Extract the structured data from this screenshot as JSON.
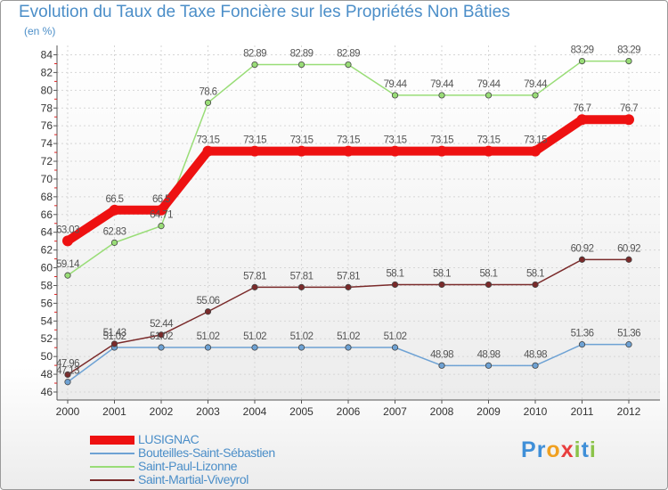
{
  "chart_data": {
    "type": "line",
    "title": "Evolution du Taux de Taxe Foncière sur les Propriétés Non Bâties",
    "ylabel": "(en %)",
    "xlabel": "",
    "ylim": [
      46,
      84
    ],
    "yticks": [
      46,
      48,
      50,
      52,
      54,
      56,
      58,
      60,
      62,
      64,
      66,
      68,
      70,
      72,
      74,
      76,
      78,
      80,
      82,
      84
    ],
    "categories": [
      "2000",
      "2001",
      "2002",
      "2003",
      "2004",
      "2005",
      "2006",
      "2007",
      "2008",
      "2009",
      "2010",
      "2011",
      "2012"
    ],
    "series": [
      {
        "name": "LUSIGNAC",
        "color": "#ee1111",
        "values": [
          63.03,
          66.5,
          66.5,
          73.15,
          73.15,
          73.15,
          73.15,
          73.15,
          73.15,
          73.15,
          73.15,
          76.7,
          76.7
        ],
        "labels": [
          "63.03",
          "66.5",
          "66.5",
          "73.15",
          "73.15",
          "73.15",
          "73.15",
          "73.15",
          "73.15",
          "73.15",
          "73.15",
          "76.7",
          "76.7"
        ]
      },
      {
        "name": "Bouteilles-Saint-Sébastien",
        "color": "#6ea2d4",
        "values": [
          47.13,
          51.02,
          51.02,
          51.02,
          51.02,
          51.02,
          51.02,
          51.02,
          48.98,
          48.98,
          48.98,
          51.36,
          51.36
        ],
        "labels": [
          "47.13",
          "51.02",
          "51.02",
          "51.02",
          "51.02",
          "51.02",
          "51.02",
          "51.02",
          "48.98",
          "48.98",
          "48.98",
          "51.36",
          "51.36"
        ]
      },
      {
        "name": "Saint-Paul-Lizonne",
        "color": "#99dd77",
        "values": [
          59.14,
          62.83,
          64.71,
          78.6,
          82.89,
          82.89,
          82.89,
          79.44,
          79.44,
          79.44,
          79.44,
          83.29,
          83.29
        ],
        "labels": [
          "59.14",
          "62.83",
          "64.71",
          "78.6",
          "82.89",
          "82.89",
          "82.89",
          "79.44",
          "79.44",
          "79.44",
          "79.44",
          "83.29",
          "83.29"
        ]
      },
      {
        "name": "Saint-Martial-Viveyrol",
        "color": "#7a2a2a",
        "values": [
          47.96,
          51.43,
          52.44,
          55.06,
          57.81,
          57.81,
          57.81,
          58.1,
          58.1,
          58.1,
          58.1,
          60.92,
          60.92
        ],
        "labels": [
          "47.96",
          "51.43",
          "52.44",
          "55.06",
          "57.81",
          "57.81",
          "57.81",
          "58.1",
          "58.1",
          "58.1",
          "58.1",
          "60.92",
          "60.92"
        ]
      }
    ]
  },
  "brand": {
    "parts": [
      {
        "text": "P",
        "color": "#3f8fd8"
      },
      {
        "text": "r",
        "color": "#3f8fd8"
      },
      {
        "text": "o",
        "color": "#f0a020"
      },
      {
        "text": "x",
        "color": "#e83e3e"
      },
      {
        "text": "i",
        "color": "#8bc34a"
      },
      {
        "text": "t",
        "color": "#3f8fd8"
      },
      {
        "text": "i",
        "color": "#8bc34a"
      }
    ]
  }
}
